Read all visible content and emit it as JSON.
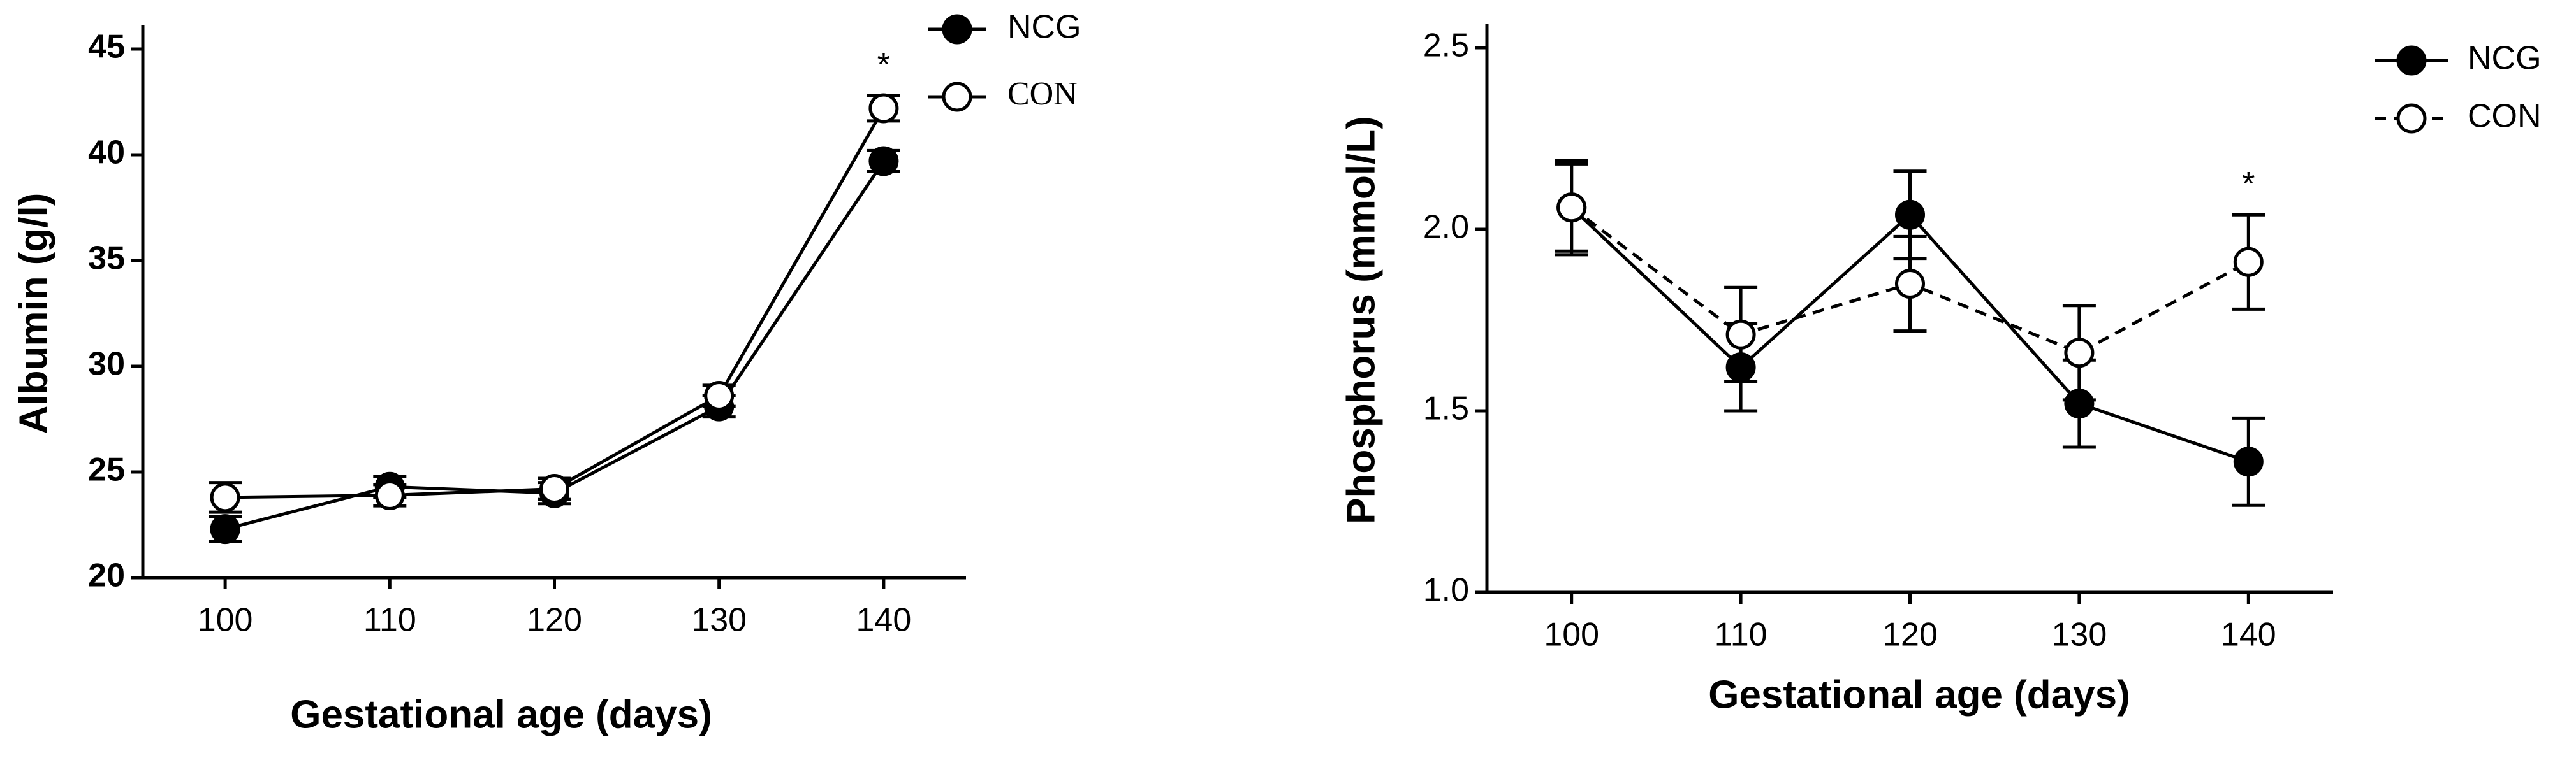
{
  "chart_data": [
    {
      "type": "line",
      "xlabel": "Gestational age (days)",
      "ylabel": "Albumin (g/l)",
      "x": [
        100,
        110,
        120,
        130,
        140
      ],
      "xlim": [
        95,
        145
      ],
      "xticks": [
        100,
        110,
        120,
        130,
        140
      ],
      "ylim": [
        20,
        45
      ],
      "yticks": [
        20,
        25,
        30,
        35,
        40,
        45
      ],
      "annotation": "*",
      "series": [
        {
          "name": "NCG",
          "color": "#000000",
          "marker": "filled",
          "line_style": "solid",
          "values": [
            22.3,
            24.3,
            24.0,
            28.1,
            39.7
          ],
          "errors": [
            0.6,
            0.5,
            0.5,
            0.5,
            0.5
          ]
        },
        {
          "name": "CON",
          "color": "#000000",
          "marker": "open",
          "line_style": "solid",
          "values": [
            23.8,
            23.9,
            24.2,
            28.6,
            42.2
          ],
          "errors": [
            0.7,
            0.5,
            0.5,
            0.5,
            0.6
          ]
        }
      ]
    },
    {
      "type": "line",
      "xlabel": "Gestational age (days)",
      "ylabel": "Phosphorus (mmol/L)",
      "x": [
        100,
        110,
        120,
        130,
        140
      ],
      "xlim": [
        95,
        145
      ],
      "xticks": [
        100,
        110,
        120,
        130,
        140
      ],
      "ylim": [
        1.0,
        2.5
      ],
      "yticks": [
        {
          "value": 1.0,
          "label": "1.0"
        },
        1.5,
        {
          "value": 2.0,
          "label": "2.0"
        },
        2.5
      ],
      "annotation": "*",
      "series": [
        {
          "name": "NCG",
          "color": "#000000",
          "marker": "filled",
          "line_style": "solid",
          "values": [
            2.06,
            1.62,
            2.04,
            1.52,
            1.36
          ],
          "errors": [
            0.13,
            0.12,
            0.12,
            0.12,
            0.12
          ]
        },
        {
          "name": "CON",
          "color": "#000000",
          "marker": "open",
          "line_style": "dashed",
          "values": [
            2.06,
            1.71,
            1.85,
            1.66,
            1.91
          ],
          "errors": [
            0.12,
            0.13,
            0.13,
            0.13,
            0.13
          ]
        }
      ]
    }
  ]
}
